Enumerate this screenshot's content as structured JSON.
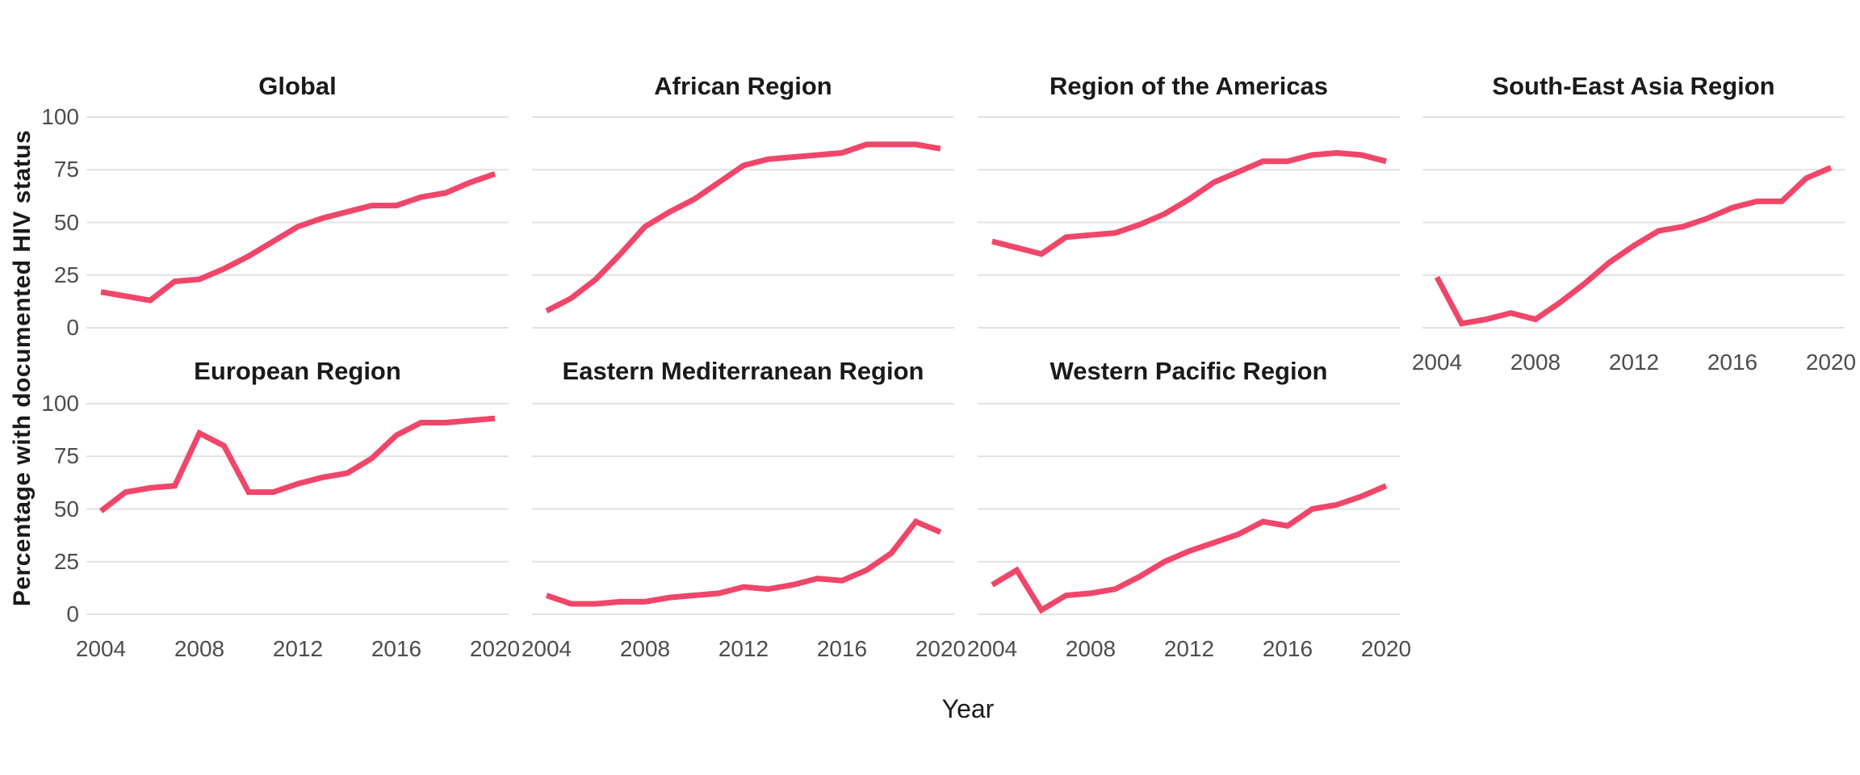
{
  "page": {
    "background": "#FFFFFF"
  },
  "chart_data": {
    "type": "line",
    "title": "",
    "xlabel": "Year",
    "ylabel": "Percentage with documented HIV status",
    "x": [
      2004,
      2005,
      2006,
      2007,
      2008,
      2009,
      2010,
      2011,
      2012,
      2013,
      2014,
      2015,
      2016,
      2017,
      2018,
      2019,
      2020
    ],
    "xticks": [
      2004,
      2008,
      2012,
      2016,
      2020
    ],
    "yticks": [
      0,
      25,
      50,
      75,
      100
    ],
    "ylim": [
      0,
      100
    ],
    "grid": "horizontal-only",
    "legend": "none",
    "line_color": "#F04669",
    "gridline_color": "#E2E2E2",
    "tick_label_color": "#4D4D4D",
    "facets": [
      {
        "name": "Global",
        "values": [
          17,
          15,
          13,
          22,
          23,
          28,
          34,
          41,
          48,
          52,
          55,
          58,
          58,
          62,
          64,
          69,
          73
        ]
      },
      {
        "name": "African Region",
        "values": [
          8,
          14,
          23,
          35,
          48,
          55,
          61,
          69,
          77,
          80,
          81,
          82,
          83,
          87,
          87,
          87,
          85
        ]
      },
      {
        "name": "Region of the Americas",
        "values": [
          41,
          38,
          35,
          43,
          44,
          45,
          49,
          54,
          61,
          69,
          74,
          79,
          79,
          82,
          83,
          82,
          79
        ]
      },
      {
        "name": "South-East Asia Region",
        "values": [
          24,
          2,
          4,
          7,
          4,
          12,
          21,
          31,
          39,
          46,
          48,
          52,
          57,
          60,
          60,
          71,
          76
        ]
      },
      {
        "name": "European Region",
        "values": [
          49,
          58,
          60,
          61,
          86,
          80,
          58,
          58,
          62,
          65,
          67,
          74,
          85,
          91,
          91,
          92,
          93
        ]
      },
      {
        "name": "Eastern Mediterranean Region",
        "values": [
          9,
          5,
          5,
          6,
          6,
          8,
          9,
          10,
          13,
          12,
          14,
          17,
          16,
          21,
          29,
          44,
          39
        ]
      },
      {
        "name": "Western Pacific Region",
        "values": [
          14,
          21,
          2,
          9,
          10,
          12,
          18,
          25,
          30,
          34,
          38,
          44,
          42,
          50,
          52,
          56,
          61
        ]
      }
    ]
  }
}
